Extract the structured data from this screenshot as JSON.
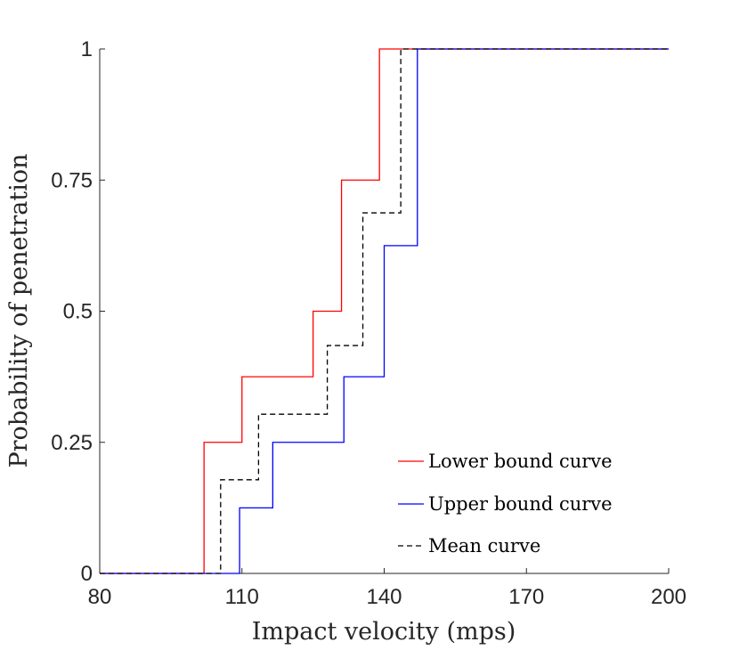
{
  "chart_data": {
    "type": "line",
    "title": "",
    "xlabel": "Impact velocity (mps)",
    "ylabel": "Probability of penetration",
    "xlim": [
      80,
      200
    ],
    "ylim": [
      0,
      1
    ],
    "xticks": [
      80,
      110,
      140,
      170,
      200
    ],
    "xtick_labels": [
      "80",
      "110",
      "140",
      "170",
      "200"
    ],
    "yticks": [
      0,
      0.25,
      0.5,
      0.75,
      1
    ],
    "ytick_labels": [
      "0",
      "0.25",
      "0.5",
      "0.75",
      "1"
    ],
    "grid": false,
    "legend_position": "bottom-right",
    "series": [
      {
        "name": "Lower bound curve",
        "color": "#ff0000",
        "dash": "solid",
        "step_x": [
          80,
          102,
          102,
          104,
          104,
          110,
          110,
          125,
          125,
          131,
          131,
          139,
          139,
          140,
          140,
          200
        ],
        "step_y": [
          0,
          0,
          0.25,
          0.25,
          0.25,
          0.25,
          0.375,
          0.375,
          0.5,
          0.5,
          0.75,
          0.75,
          1,
          1,
          1,
          1
        ]
      },
      {
        "name": "Upper bound curve",
        "color": "#0000ff",
        "dash": "solid",
        "step_x": [
          80,
          109.5,
          109.5,
          110,
          110,
          116.5,
          116.5,
          131.5,
          131.5,
          133,
          133,
          140,
          140,
          147,
          147,
          200
        ],
        "step_y": [
          0,
          0,
          0.125,
          0.125,
          0.125,
          0.125,
          0.25,
          0.25,
          0.375,
          0.375,
          0.375,
          0.375,
          0.625,
          0.625,
          1,
          1
        ]
      },
      {
        "name": "Mean curve",
        "color": "#000000",
        "dash": "dashed",
        "step_x": [
          80,
          105.5,
          105.5,
          113.5,
          113.5,
          128,
          128,
          135.5,
          135.5,
          143.5,
          143.5,
          200
        ],
        "step_y": [
          0,
          0,
          0.1786,
          0.1786,
          0.3036,
          0.3036,
          0.4345,
          0.4345,
          0.6875,
          0.6875,
          1,
          1
        ]
      }
    ]
  }
}
